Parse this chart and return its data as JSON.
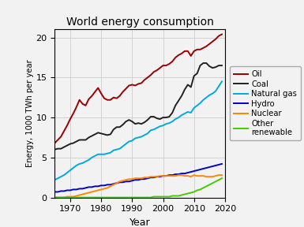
{
  "title": "World energy consumption",
  "xlabel": "Year",
  "ylabel": "Energy, 1000 TWh per year",
  "ylim": [
    0,
    21
  ],
  "yticks": [
    0,
    5,
    10,
    15,
    20
  ],
  "legend_labels": [
    "Oil",
    "Coal",
    "Natural gas",
    "Hydro",
    "Nuclear",
    "Other\nrenewable"
  ],
  "colors": [
    "#990000",
    "#222222",
    "#00aadd",
    "#0000cc",
    "#ff8800",
    "#44cc00"
  ],
  "years": [
    1965,
    1966,
    1967,
    1968,
    1969,
    1970,
    1971,
    1972,
    1973,
    1974,
    1975,
    1976,
    1977,
    1978,
    1979,
    1980,
    1981,
    1982,
    1983,
    1984,
    1985,
    1986,
    1987,
    1988,
    1989,
    1990,
    1991,
    1992,
    1993,
    1994,
    1995,
    1996,
    1997,
    1998,
    1999,
    2000,
    2001,
    2002,
    2003,
    2004,
    2005,
    2006,
    2007,
    2008,
    2009,
    2010,
    2011,
    2012,
    2013,
    2014,
    2015,
    2016,
    2017,
    2018,
    2019
  ],
  "oil": [
    6.8,
    7.2,
    7.6,
    8.3,
    9.0,
    9.8,
    10.5,
    11.3,
    12.2,
    11.7,
    11.5,
    12.3,
    12.7,
    13.2,
    13.7,
    13.0,
    12.4,
    12.2,
    12.2,
    12.5,
    12.4,
    12.7,
    13.2,
    13.6,
    14.0,
    14.1,
    14.0,
    14.2,
    14.3,
    14.7,
    15.0,
    15.3,
    15.7,
    15.9,
    16.2,
    16.5,
    16.5,
    16.7,
    17.0,
    17.5,
    17.8,
    18.0,
    18.3,
    18.3,
    17.7,
    18.3,
    18.5,
    18.5,
    18.7,
    18.9,
    19.2,
    19.5,
    19.8,
    20.2,
    20.4
  ],
  "coal": [
    6.0,
    6.1,
    6.1,
    6.3,
    6.5,
    6.7,
    6.8,
    7.0,
    7.2,
    7.2,
    7.2,
    7.5,
    7.7,
    7.9,
    8.1,
    8.0,
    7.9,
    7.8,
    7.9,
    8.5,
    8.8,
    8.8,
    9.1,
    9.5,
    9.7,
    9.5,
    9.2,
    9.3,
    9.2,
    9.4,
    9.7,
    10.1,
    10.1,
    9.9,
    9.8,
    10.0,
    10.0,
    10.1,
    10.6,
    11.5,
    12.1,
    12.7,
    13.5,
    14.1,
    13.8,
    15.2,
    15.5,
    16.5,
    16.8,
    16.8,
    16.4,
    16.2,
    16.3,
    16.5,
    16.5
  ],
  "natural_gas": [
    2.2,
    2.4,
    2.6,
    2.8,
    3.1,
    3.4,
    3.7,
    4.0,
    4.2,
    4.3,
    4.5,
    4.7,
    5.0,
    5.2,
    5.4,
    5.4,
    5.4,
    5.5,
    5.6,
    5.9,
    6.0,
    6.1,
    6.4,
    6.7,
    7.0,
    7.1,
    7.4,
    7.5,
    7.6,
    7.8,
    8.0,
    8.4,
    8.5,
    8.7,
    8.9,
    9.0,
    9.2,
    9.3,
    9.5,
    9.8,
    10.0,
    10.3,
    10.5,
    10.7,
    10.6,
    11.2,
    11.5,
    11.8,
    12.2,
    12.5,
    12.8,
    13.0,
    13.3,
    13.9,
    14.5
  ],
  "hydro": [
    0.7,
    0.7,
    0.8,
    0.8,
    0.9,
    0.9,
    1.0,
    1.0,
    1.1,
    1.1,
    1.2,
    1.3,
    1.3,
    1.4,
    1.4,
    1.5,
    1.5,
    1.6,
    1.6,
    1.7,
    1.8,
    1.9,
    1.9,
    2.0,
    2.0,
    2.1,
    2.2,
    2.2,
    2.3,
    2.3,
    2.4,
    2.5,
    2.5,
    2.6,
    2.6,
    2.7,
    2.7,
    2.8,
    2.8,
    2.9,
    2.9,
    3.0,
    3.0,
    3.1,
    3.2,
    3.3,
    3.4,
    3.5,
    3.6,
    3.7,
    3.8,
    3.9,
    4.0,
    4.1,
    4.2
  ],
  "nuclear": [
    0.0,
    0.0,
    0.0,
    0.0,
    0.1,
    0.1,
    0.1,
    0.2,
    0.3,
    0.4,
    0.5,
    0.6,
    0.7,
    0.8,
    0.9,
    1.0,
    1.1,
    1.2,
    1.4,
    1.6,
    1.8,
    2.0,
    2.1,
    2.2,
    2.3,
    2.3,
    2.4,
    2.4,
    2.4,
    2.5,
    2.5,
    2.6,
    2.6,
    2.6,
    2.7,
    2.7,
    2.7,
    2.7,
    2.7,
    2.7,
    2.8,
    2.8,
    2.7,
    2.7,
    2.6,
    2.8,
    2.7,
    2.7,
    2.7,
    2.6,
    2.6,
    2.6,
    2.7,
    2.8,
    2.8
  ],
  "other_renew": [
    0.0,
    0.0,
    0.0,
    0.0,
    0.0,
    0.0,
    0.0,
    0.0,
    0.0,
    0.0,
    0.0,
    0.0,
    0.0,
    0.0,
    0.0,
    0.0,
    0.0,
    0.0,
    0.0,
    0.0,
    0.0,
    0.0,
    0.0,
    0.0,
    0.0,
    0.0,
    0.0,
    0.0,
    0.0,
    0.0,
    0.0,
    0.0,
    0.1,
    0.1,
    0.1,
    0.1,
    0.1,
    0.1,
    0.2,
    0.2,
    0.2,
    0.3,
    0.4,
    0.5,
    0.6,
    0.7,
    0.9,
    1.0,
    1.2,
    1.4,
    1.6,
    1.8,
    2.0,
    2.2,
    2.4
  ],
  "background_color": "#f2f2f2",
  "grid_color": "#cccccc",
  "linewidth": 1.4,
  "figsize": [
    3.85,
    2.88
  ],
  "dpi": 100,
  "xlim": [
    1965,
    2020
  ],
  "xticks": [
    1970,
    1980,
    1990,
    2000,
    2010,
    2020
  ]
}
